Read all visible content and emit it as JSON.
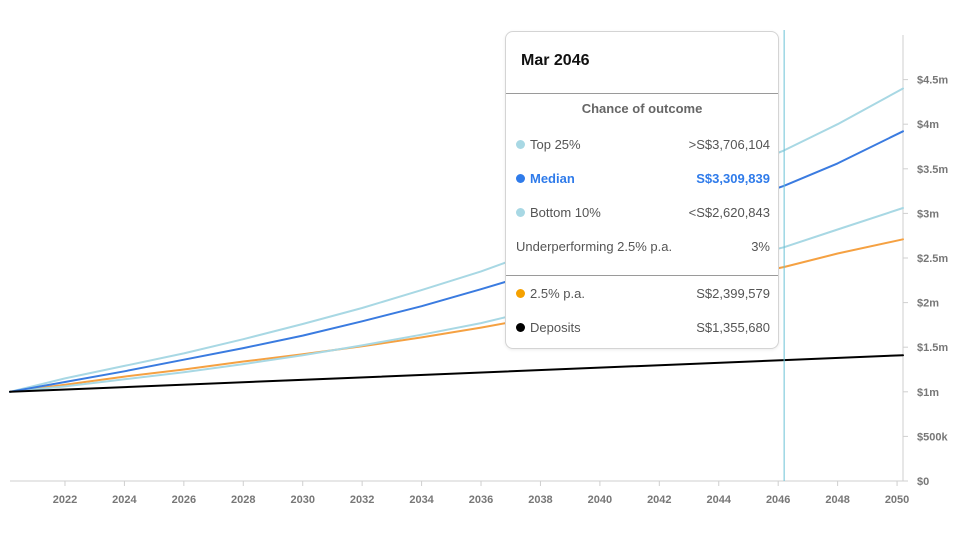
{
  "chart_data": {
    "type": "line",
    "x_range": [
      2020.15,
      2050.2
    ],
    "y_range": [
      0,
      5000000
    ],
    "x_ticks": [
      2022,
      2024,
      2026,
      2028,
      2030,
      2032,
      2034,
      2036,
      2038,
      2040,
      2042,
      2044,
      2046,
      2048,
      2050
    ],
    "x_tick_labels": [
      "2022",
      "2024",
      "2026",
      "2028",
      "2030",
      "2032",
      "2034",
      "2036",
      "2038",
      "2040",
      "2042",
      "2044",
      "2046",
      "2048",
      "2050"
    ],
    "y_ticks": [
      0,
      500000,
      1000000,
      1500000,
      2000000,
      2500000,
      3000000,
      3500000,
      4000000,
      4500000
    ],
    "y_tick_labels": [
      "$0",
      "$500k",
      "$1m",
      "$1.5m",
      "$2m",
      "$2.5m",
      "$3m",
      "$3.5m",
      "$4m",
      "$4.5m"
    ],
    "y_axis_side": "right",
    "grid": false,
    "series": [
      {
        "name": "Top 25%",
        "color": "#a8d8e4",
        "x": [
          2020.15,
          2022,
          2024,
          2026,
          2028,
          2030,
          2032,
          2034,
          2036,
          2037,
          2046.2,
          2048,
          2050.2
        ],
        "y": [
          1000000,
          1150000,
          1290000,
          1430000,
          1590000,
          1760000,
          1940000,
          2140000,
          2350000,
          2470000,
          3706104,
          4000000,
          4400000
        ]
      },
      {
        "name": "Median",
        "color": "#3a7be0",
        "x": [
          2020.15,
          2022,
          2024,
          2026,
          2028,
          2030,
          2032,
          2034,
          2036,
          2037,
          2046.2,
          2048,
          2050.2
        ],
        "y": [
          1000000,
          1110000,
          1230000,
          1360000,
          1490000,
          1630000,
          1790000,
          1960000,
          2150000,
          2250000,
          3309839,
          3560000,
          3920000
        ]
      },
      {
        "name": "Bottom 10%",
        "color": "#a8d8e4",
        "x": [
          2020.15,
          2022,
          2024,
          2026,
          2028,
          2030,
          2032,
          2034,
          2036,
          2037,
          2046.2,
          2048,
          2050.2
        ],
        "y": [
          1000000,
          1060000,
          1140000,
          1220000,
          1310000,
          1410000,
          1520000,
          1640000,
          1770000,
          1850000,
          2620843,
          2820000,
          3060000
        ]
      },
      {
        "name": "2.5% p.a.",
        "color": "#f5a142",
        "x": [
          2020.15,
          2022,
          2024,
          2026,
          2028,
          2030,
          2032,
          2034,
          2036,
          2037,
          2046.2,
          2048,
          2050.2
        ],
        "y": [
          1000000,
          1080000,
          1170000,
          1250000,
          1340000,
          1420000,
          1510000,
          1610000,
          1720000,
          1780000,
          2399579,
          2550000,
          2710000
        ]
      },
      {
        "name": "Deposits",
        "color": "#000000",
        "x": [
          2020.15,
          2046.2,
          2050.2
        ],
        "y": [
          1000000,
          1355680,
          1410000
        ]
      }
    ],
    "cursor_x": 2046.2
  },
  "tooltip": {
    "title": "Mar 2046",
    "subtitle": "Chance of outcome",
    "rows": [
      {
        "label": "Top 25%",
        "value": ">S$3,706,104",
        "color": "#a8d8e4"
      },
      {
        "label": "Median",
        "value": "S$3,309,839",
        "color": "#2f7bea"
      },
      {
        "label": "Bottom 10%",
        "value": "<S$2,620,843",
        "color": "#a8d8e4"
      },
      {
        "label": "Underperforming 2.5% p.a.",
        "value": "3%"
      }
    ],
    "benchmark_rows": [
      {
        "label": "2.5% p.a.",
        "value": "S$2,399,579",
        "color": "#f5a100"
      },
      {
        "label": "Deposits",
        "value": "S$1,355,680",
        "color": "#000000"
      }
    ]
  }
}
